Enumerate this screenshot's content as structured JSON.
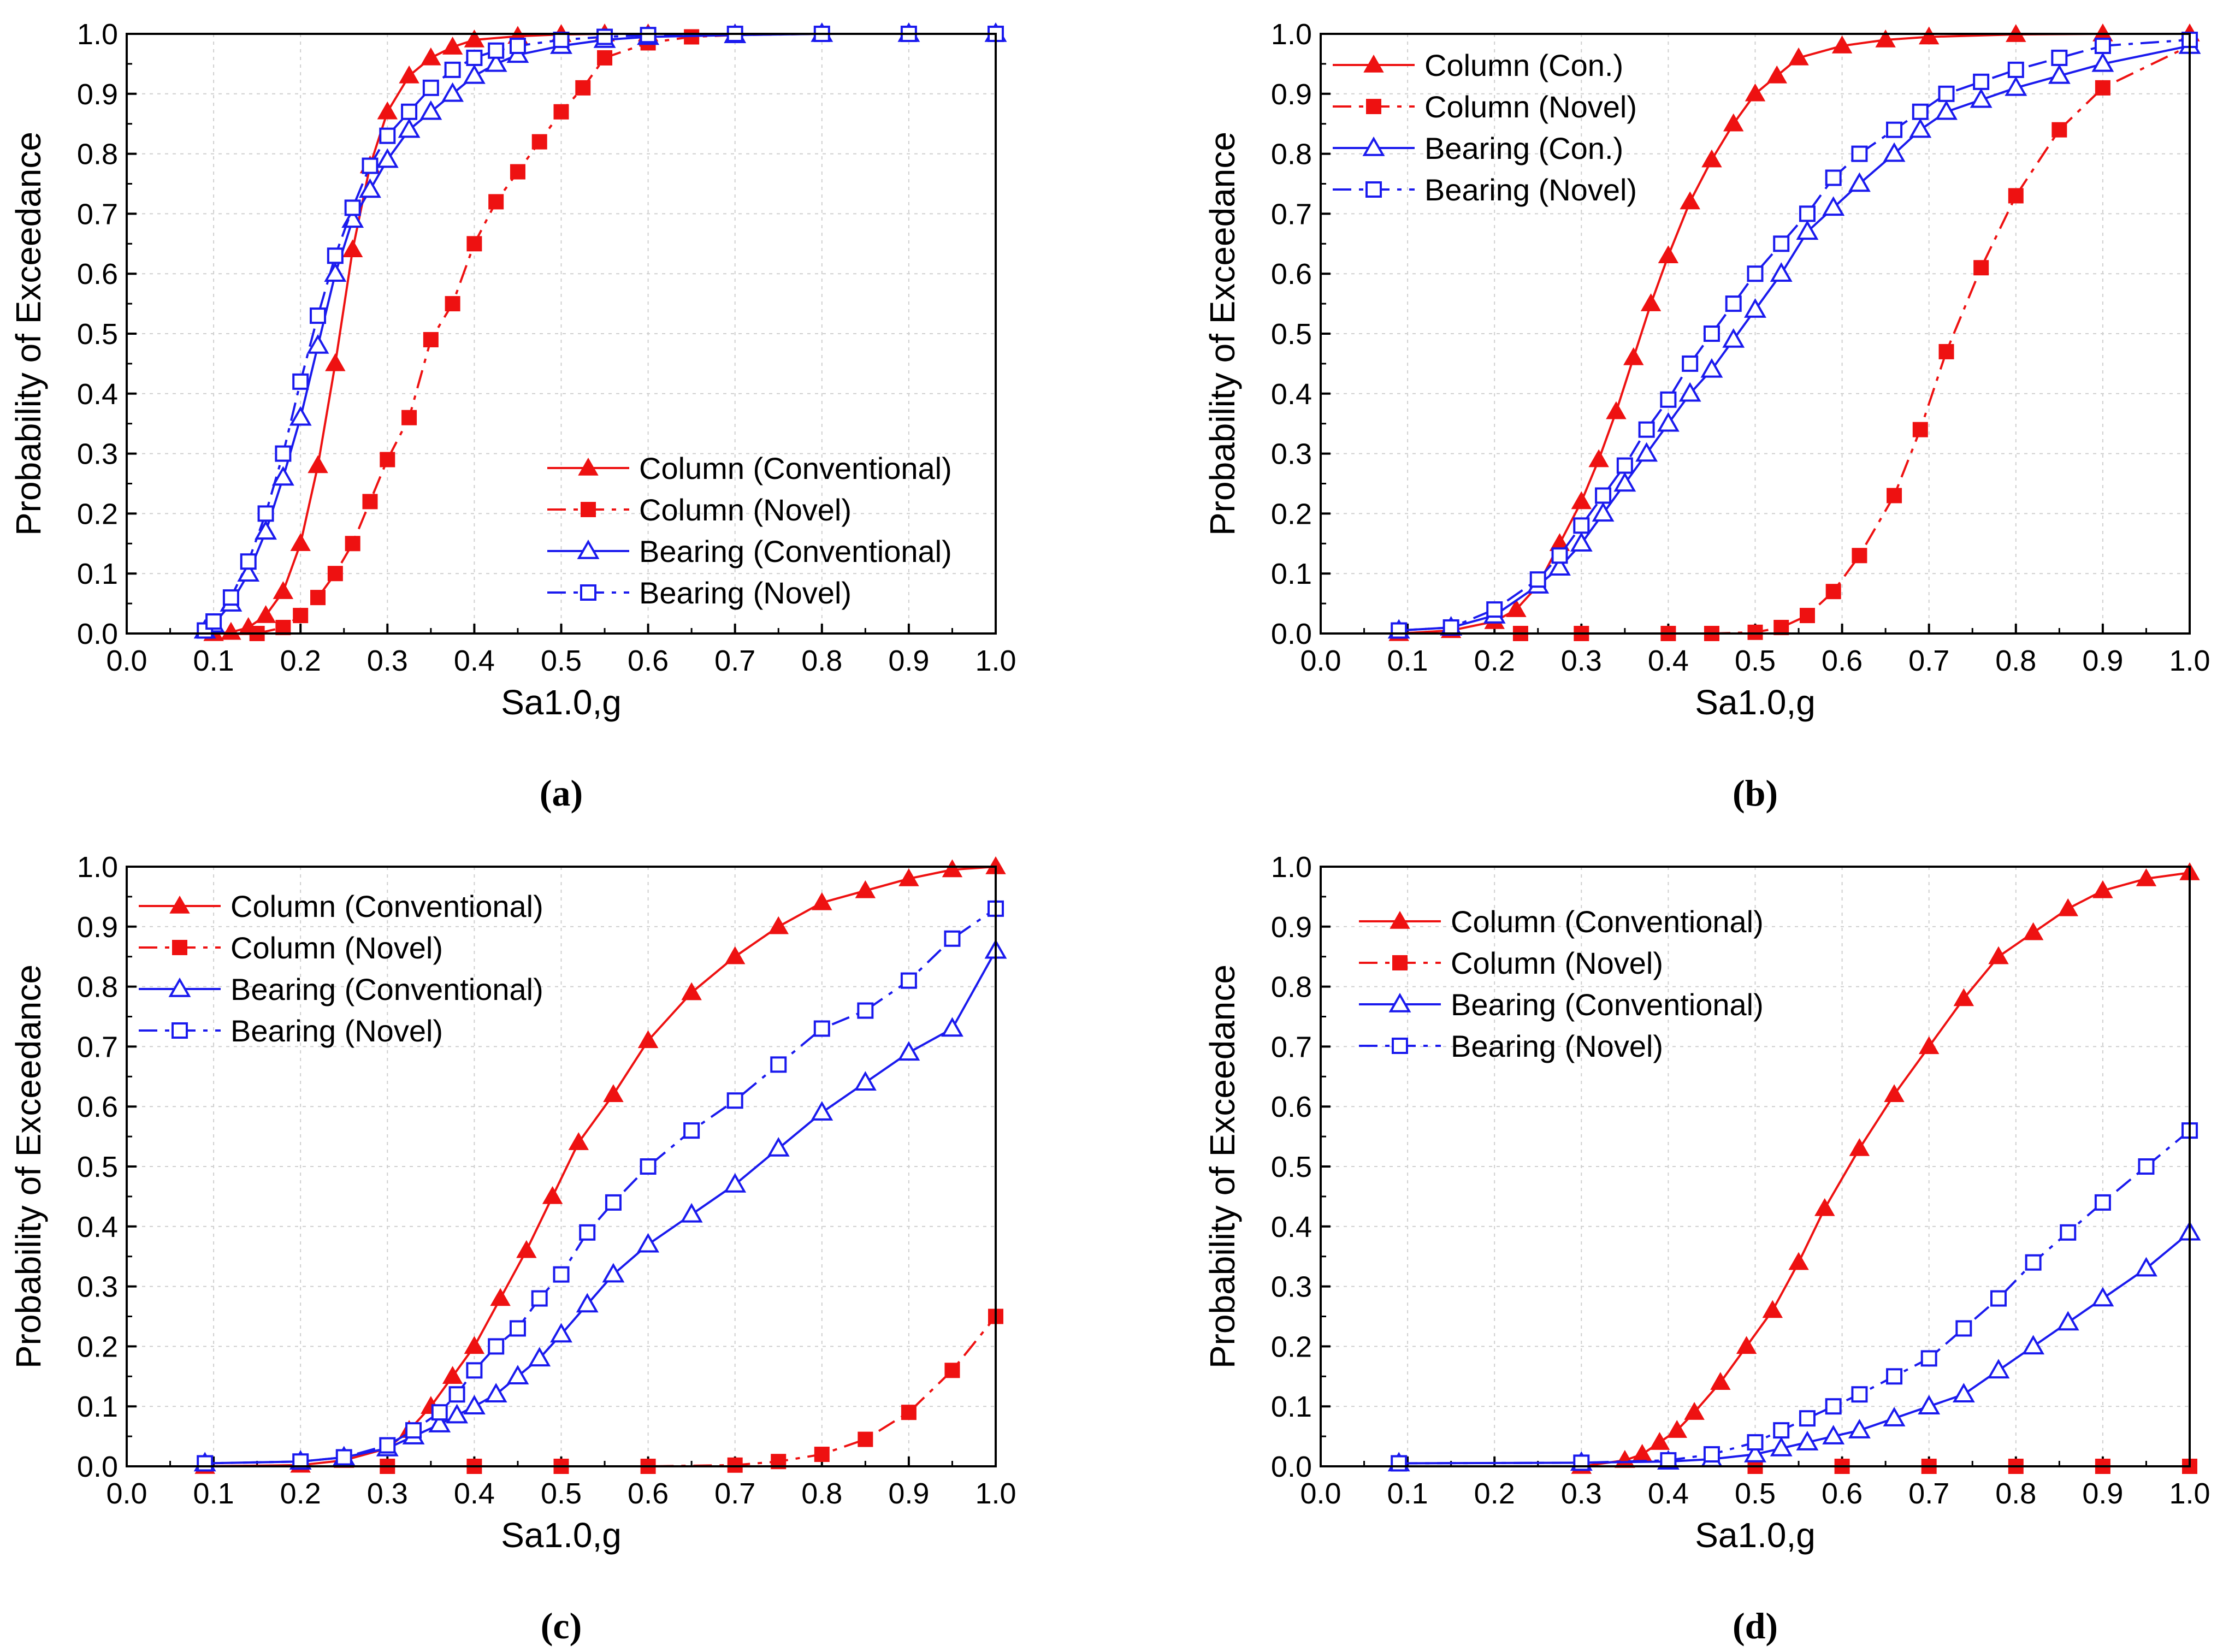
{
  "chart_data": [
    {
      "panel": "a",
      "caption": "(a)",
      "type": "line",
      "xlabel": "Sa1.0,g",
      "ylabel": "Probability of Exceedance",
      "xlim": [
        0.0,
        1.0
      ],
      "ylim": [
        0.0,
        1.0
      ],
      "xticks": [
        "0.0",
        "0.1",
        "0.2",
        "0.3",
        "0.4",
        "0.5",
        "0.6",
        "0.7",
        "0.8",
        "0.9",
        "1.0"
      ],
      "yticks": [
        "0.0",
        "0.1",
        "0.2",
        "0.3",
        "0.4",
        "0.5",
        "0.6",
        "0.7",
        "0.8",
        "0.9",
        "1.0"
      ],
      "grid": true,
      "legend_position": "bottom-right",
      "series": [
        {
          "name": "Column (Conventional)",
          "style": "column-con",
          "x": [
            0.1,
            0.12,
            0.14,
            0.16,
            0.18,
            0.2,
            0.22,
            0.24,
            0.26,
            0.28,
            0.3,
            0.325,
            0.35,
            0.375,
            0.4,
            0.45,
            0.5,
            0.55,
            0.6,
            0.7,
            0.8,
            0.9,
            1.0
          ],
          "y": [
            0.0,
            0.002,
            0.01,
            0.03,
            0.07,
            0.15,
            0.28,
            0.45,
            0.64,
            0.78,
            0.87,
            0.93,
            0.96,
            0.978,
            0.99,
            0.996,
            0.999,
            1.0,
            1.0,
            1.0,
            1.0,
            1.0,
            1.0
          ]
        },
        {
          "name": "Column (Novel)",
          "style": "column-novel",
          "x": [
            0.15,
            0.18,
            0.2,
            0.22,
            0.24,
            0.26,
            0.28,
            0.3,
            0.325,
            0.35,
            0.375,
            0.4,
            0.425,
            0.45,
            0.475,
            0.5,
            0.525,
            0.55,
            0.6,
            0.65,
            0.7,
            0.8,
            0.9,
            1.0
          ],
          "y": [
            0.0,
            0.01,
            0.03,
            0.06,
            0.1,
            0.15,
            0.22,
            0.29,
            0.36,
            0.49,
            0.55,
            0.65,
            0.72,
            0.77,
            0.82,
            0.87,
            0.91,
            0.96,
            0.985,
            0.995,
            0.998,
            1.0,
            1.0,
            1.0
          ]
        },
        {
          "name": "Bearing (Conventional)",
          "style": "bearing-con",
          "x": [
            0.09,
            0.1,
            0.12,
            0.14,
            0.16,
            0.18,
            0.2,
            0.22,
            0.24,
            0.26,
            0.28,
            0.3,
            0.325,
            0.35,
            0.375,
            0.4,
            0.425,
            0.45,
            0.5,
            0.55,
            0.6,
            0.7,
            0.8,
            0.9,
            1.0
          ],
          "y": [
            0.005,
            0.015,
            0.05,
            0.1,
            0.17,
            0.26,
            0.36,
            0.48,
            0.6,
            0.69,
            0.74,
            0.79,
            0.84,
            0.87,
            0.9,
            0.93,
            0.95,
            0.965,
            0.98,
            0.99,
            0.995,
            0.998,
            1.0,
            1.0,
            1.0
          ]
        },
        {
          "name": "Bearing (Novel)",
          "style": "bearing-novel",
          "x": [
            0.09,
            0.1,
            0.12,
            0.14,
            0.16,
            0.18,
            0.2,
            0.22,
            0.24,
            0.26,
            0.28,
            0.3,
            0.325,
            0.35,
            0.375,
            0.4,
            0.425,
            0.45,
            0.5,
            0.55,
            0.6,
            0.7,
            0.8,
            0.9,
            1.0
          ],
          "y": [
            0.005,
            0.02,
            0.06,
            0.12,
            0.2,
            0.3,
            0.42,
            0.53,
            0.63,
            0.71,
            0.78,
            0.83,
            0.87,
            0.91,
            0.94,
            0.96,
            0.972,
            0.98,
            0.99,
            0.995,
            0.998,
            1.0,
            1.0,
            1.0,
            1.0
          ]
        }
      ]
    },
    {
      "panel": "b",
      "caption": "(b)",
      "type": "line",
      "xlabel": "Sa1.0,g",
      "ylabel": "Probability of Exceedance",
      "xlim": [
        0.0,
        1.0
      ],
      "ylim": [
        0.0,
        1.0
      ],
      "xticks": [
        "0.0",
        "0.1",
        "0.2",
        "0.3",
        "0.4",
        "0.5",
        "0.6",
        "0.7",
        "0.8",
        "0.9",
        "1.0"
      ],
      "yticks": [
        "0.0",
        "0.1",
        "0.2",
        "0.3",
        "0.4",
        "0.5",
        "0.6",
        "0.7",
        "0.8",
        "0.9",
        "1.0"
      ],
      "grid": true,
      "legend_position": "top-left",
      "series": [
        {
          "name": "Column (Con.)",
          "style": "column-con",
          "x": [
            0.09,
            0.15,
            0.2,
            0.225,
            0.25,
            0.275,
            0.3,
            0.32,
            0.34,
            0.36,
            0.38,
            0.4,
            0.425,
            0.45,
            0.475,
            0.5,
            0.525,
            0.55,
            0.6,
            0.65,
            0.7,
            0.8,
            0.9,
            1.0
          ],
          "y": [
            0.0,
            0.005,
            0.02,
            0.04,
            0.08,
            0.15,
            0.22,
            0.29,
            0.37,
            0.46,
            0.55,
            0.63,
            0.72,
            0.79,
            0.85,
            0.9,
            0.93,
            0.96,
            0.98,
            0.99,
            0.995,
            0.999,
            1.0,
            1.0
          ]
        },
        {
          "name": "Column (Novel)",
          "style": "column-novel",
          "x": [
            0.23,
            0.3,
            0.4,
            0.45,
            0.5,
            0.53,
            0.56,
            0.59,
            0.62,
            0.66,
            0.69,
            0.72,
            0.76,
            0.8,
            0.85,
            0.9,
            1.0
          ],
          "y": [
            0.0,
            0.0,
            0.0,
            0.0,
            0.002,
            0.01,
            0.03,
            0.07,
            0.13,
            0.23,
            0.34,
            0.47,
            0.61,
            0.73,
            0.84,
            0.91,
            0.98
          ]
        },
        {
          "name": "Bearing (Con.)",
          "style": "bearing-con",
          "x": [
            0.09,
            0.15,
            0.2,
            0.25,
            0.275,
            0.3,
            0.325,
            0.35,
            0.375,
            0.4,
            0.425,
            0.45,
            0.475,
            0.5,
            0.53,
            0.56,
            0.59,
            0.62,
            0.66,
            0.69,
            0.72,
            0.76,
            0.8,
            0.85,
            0.9,
            1.0
          ],
          "y": [
            0.005,
            0.01,
            0.03,
            0.08,
            0.11,
            0.15,
            0.2,
            0.25,
            0.3,
            0.35,
            0.4,
            0.44,
            0.49,
            0.54,
            0.6,
            0.67,
            0.71,
            0.75,
            0.8,
            0.84,
            0.87,
            0.89,
            0.91,
            0.93,
            0.95,
            0.98
          ]
        },
        {
          "name": "Bearing (Novel)",
          "style": "bearing-novel",
          "x": [
            0.09,
            0.15,
            0.2,
            0.25,
            0.275,
            0.3,
            0.325,
            0.35,
            0.375,
            0.4,
            0.425,
            0.45,
            0.475,
            0.5,
            0.53,
            0.56,
            0.59,
            0.62,
            0.66,
            0.69,
            0.72,
            0.76,
            0.8,
            0.85,
            0.9,
            1.0
          ],
          "y": [
            0.005,
            0.01,
            0.04,
            0.09,
            0.13,
            0.18,
            0.23,
            0.28,
            0.34,
            0.39,
            0.45,
            0.5,
            0.55,
            0.6,
            0.65,
            0.7,
            0.76,
            0.8,
            0.84,
            0.87,
            0.9,
            0.92,
            0.94,
            0.96,
            0.98,
            0.99
          ]
        }
      ]
    },
    {
      "panel": "c",
      "caption": "(c)",
      "type": "line",
      "xlabel": "Sa1.0,g",
      "ylabel": "Probability of Exceedance",
      "xlim": [
        0.0,
        1.0
      ],
      "ylim": [
        0.0,
        1.0
      ],
      "xticks": [
        "0.0",
        "0.1",
        "0.2",
        "0.3",
        "0.4",
        "0.5",
        "0.6",
        "0.7",
        "0.8",
        "0.9",
        "1.0"
      ],
      "yticks": [
        "0.0",
        "0.1",
        "0.2",
        "0.3",
        "0.4",
        "0.5",
        "0.6",
        "0.7",
        "0.8",
        "0.9",
        "1.0"
      ],
      "grid": true,
      "legend_position": "top-left",
      "series": [
        {
          "name": "Column (Conventional)",
          "style": "column-con",
          "x": [
            0.09,
            0.2,
            0.25,
            0.3,
            0.325,
            0.35,
            0.375,
            0.4,
            0.43,
            0.46,
            0.49,
            0.52,
            0.56,
            0.6,
            0.65,
            0.7,
            0.75,
            0.8,
            0.85,
            0.9,
            0.95,
            1.0
          ],
          "y": [
            0.0,
            0.002,
            0.01,
            0.03,
            0.06,
            0.1,
            0.15,
            0.2,
            0.28,
            0.36,
            0.45,
            0.54,
            0.62,
            0.71,
            0.79,
            0.85,
            0.9,
            0.94,
            0.96,
            0.98,
            0.995,
            1.0
          ]
        },
        {
          "name": "Column (Novel)",
          "style": "column-novel",
          "x": [
            0.3,
            0.4,
            0.5,
            0.6,
            0.7,
            0.75,
            0.8,
            0.85,
            0.9,
            0.95,
            1.0
          ],
          "y": [
            0.0,
            0.0,
            0.0,
            0.0,
            0.002,
            0.008,
            0.02,
            0.045,
            0.09,
            0.16,
            0.25
          ]
        },
        {
          "name": "Bearing (Conventional)",
          "style": "bearing-con",
          "x": [
            0.09,
            0.2,
            0.25,
            0.3,
            0.33,
            0.36,
            0.38,
            0.4,
            0.425,
            0.45,
            0.475,
            0.5,
            0.53,
            0.56,
            0.6,
            0.65,
            0.7,
            0.75,
            0.8,
            0.85,
            0.9,
            0.95,
            1.0
          ],
          "y": [
            0.005,
            0.008,
            0.015,
            0.03,
            0.05,
            0.07,
            0.085,
            0.1,
            0.12,
            0.15,
            0.18,
            0.22,
            0.27,
            0.32,
            0.37,
            0.42,
            0.47,
            0.53,
            0.59,
            0.64,
            0.69,
            0.73,
            0.86
          ]
        },
        {
          "name": "Bearing (Novel)",
          "style": "bearing-novel",
          "x": [
            0.09,
            0.2,
            0.25,
            0.3,
            0.33,
            0.36,
            0.38,
            0.4,
            0.425,
            0.45,
            0.475,
            0.5,
            0.53,
            0.56,
            0.6,
            0.65,
            0.7,
            0.75,
            0.8,
            0.85,
            0.9,
            0.95,
            1.0
          ],
          "y": [
            0.005,
            0.008,
            0.015,
            0.035,
            0.06,
            0.09,
            0.12,
            0.16,
            0.2,
            0.23,
            0.28,
            0.32,
            0.39,
            0.44,
            0.5,
            0.56,
            0.61,
            0.67,
            0.73,
            0.76,
            0.81,
            0.88,
            0.93
          ]
        }
      ]
    },
    {
      "panel": "d",
      "caption": "(d)",
      "type": "line",
      "xlabel": "Sa1.0,g",
      "ylabel": "Probability of Exceedance",
      "xlim": [
        0.0,
        1.0
      ],
      "ylim": [
        0.0,
        1.0
      ],
      "xticks": [
        "0.0",
        "0.1",
        "0.2",
        "0.3",
        "0.4",
        "0.5",
        "0.6",
        "0.7",
        "0.8",
        "0.9",
        "1.0"
      ],
      "yticks": [
        "0.0",
        "0.1",
        "0.2",
        "0.3",
        "0.4",
        "0.5",
        "0.6",
        "0.7",
        "0.8",
        "0.9",
        "1.0"
      ],
      "grid": true,
      "legend_position": "top-left",
      "series": [
        {
          "name": "Column (Conventional)",
          "style": "column-con",
          "x": [
            0.3,
            0.35,
            0.37,
            0.39,
            0.41,
            0.43,
            0.46,
            0.49,
            0.52,
            0.55,
            0.58,
            0.62,
            0.66,
            0.7,
            0.74,
            0.78,
            0.82,
            0.86,
            0.9,
            0.95,
            1.0
          ],
          "y": [
            0.0,
            0.01,
            0.02,
            0.04,
            0.06,
            0.09,
            0.14,
            0.2,
            0.26,
            0.34,
            0.43,
            0.53,
            0.62,
            0.7,
            0.78,
            0.85,
            0.89,
            0.93,
            0.96,
            0.98,
            0.99
          ]
        },
        {
          "name": "Column (Novel)",
          "style": "column-novel",
          "x": [
            0.5,
            0.6,
            0.7,
            0.8,
            0.9,
            1.0
          ],
          "y": [
            0.0,
            0.0,
            0.0,
            0.0,
            0.0,
            0.0
          ]
        },
        {
          "name": "Bearing (Conventional)",
          "style": "bearing-con",
          "x": [
            0.09,
            0.3,
            0.4,
            0.45,
            0.5,
            0.53,
            0.56,
            0.59,
            0.62,
            0.66,
            0.7,
            0.74,
            0.78,
            0.82,
            0.86,
            0.9,
            0.95,
            1.0
          ],
          "y": [
            0.005,
            0.006,
            0.008,
            0.012,
            0.02,
            0.03,
            0.04,
            0.05,
            0.06,
            0.08,
            0.1,
            0.12,
            0.16,
            0.2,
            0.24,
            0.28,
            0.33,
            0.39
          ]
        },
        {
          "name": "Bearing (Novel)",
          "style": "bearing-novel",
          "x": [
            0.09,
            0.3,
            0.4,
            0.45,
            0.5,
            0.53,
            0.56,
            0.59,
            0.62,
            0.66,
            0.7,
            0.74,
            0.78,
            0.82,
            0.86,
            0.9,
            0.95,
            1.0
          ],
          "y": [
            0.005,
            0.006,
            0.01,
            0.02,
            0.04,
            0.06,
            0.08,
            0.1,
            0.12,
            0.15,
            0.18,
            0.23,
            0.28,
            0.34,
            0.39,
            0.44,
            0.5,
            0.56
          ]
        }
      ]
    }
  ],
  "colors": {
    "column": "#ee1111",
    "bearing": "#1a1aee",
    "grid": "#cfcfcf",
    "axis": "#000000"
  }
}
